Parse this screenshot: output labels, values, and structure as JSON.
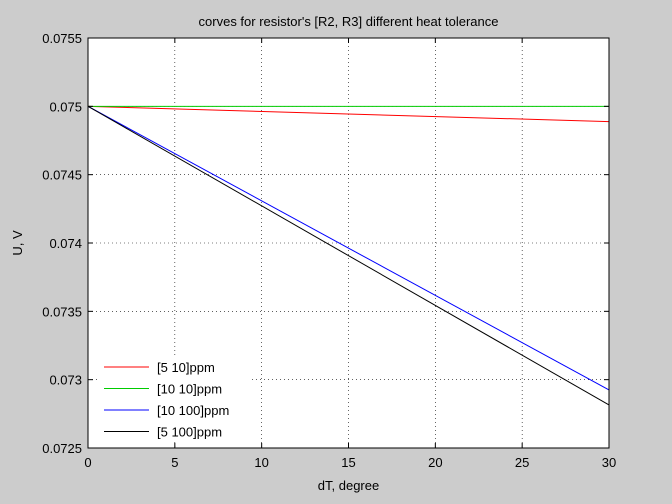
{
  "chart_data": {
    "type": "line",
    "title": "corves for resistor's [R2, R3] different heat tolerance",
    "xlabel": "dT, degree",
    "ylabel": "U, V",
    "xlim": [
      0,
      30
    ],
    "ylim": [
      0.0725,
      0.0755
    ],
    "x_ticks": [
      "0",
      "5",
      "10",
      "15",
      "20",
      "25",
      "30"
    ],
    "y_ticks": [
      "0.0725",
      "0.073",
      "0.0735",
      "0.074",
      "0.0745",
      "0.075",
      "0.0755"
    ],
    "grid": true,
    "legend_position": "bottom-left",
    "series": [
      {
        "name": "[5 10]ppm",
        "color": "#ff0000",
        "x": [
          0,
          30
        ],
        "y": [
          0.075,
          0.074888
        ]
      },
      {
        "name": "[10 10]ppm",
        "color": "#00cc00",
        "x": [
          0,
          30
        ],
        "y": [
          0.075,
          0.075
        ]
      },
      {
        "name": "[10 100]ppm",
        "color": "#0000ff",
        "x": [
          0,
          30
        ],
        "y": [
          0.075,
          0.072925
        ]
      },
      {
        "name": "[5 100]ppm",
        "color": "#000000",
        "x": [
          0,
          30
        ],
        "y": [
          0.075,
          0.072815
        ]
      }
    ]
  }
}
